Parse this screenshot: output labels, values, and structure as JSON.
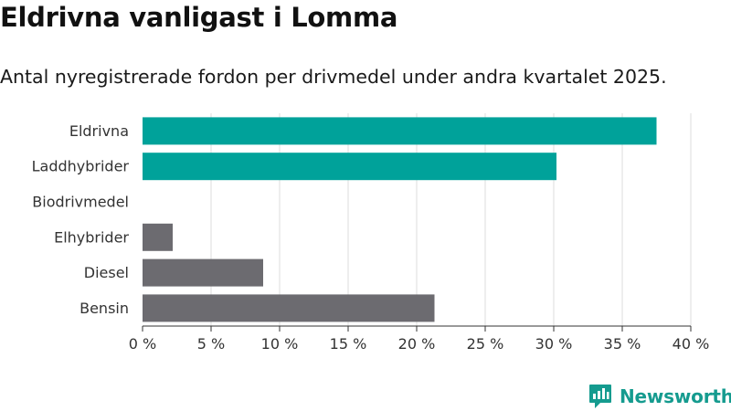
{
  "header": {
    "title": "Eldrivna vanligast i Lomma",
    "subtitle": "Antal nyregistrerade fordon per drivmedel under andra kvartalet 2025."
  },
  "brand": {
    "name": "Newsworthy",
    "icon": "newsworthy-logo-icon",
    "color": "#159b8f"
  },
  "colors": {
    "highlight": "#00a29a",
    "other": "#6c6b70",
    "grid": "#dddddd",
    "axis": "#333333"
  },
  "chart_data": {
    "type": "bar",
    "orientation": "horizontal",
    "categories": [
      "Eldrivna",
      "Laddhybrider",
      "Biodrivmedel",
      "Elhybrider",
      "Diesel",
      "Bensin"
    ],
    "values": [
      37.5,
      30.2,
      0,
      2.2,
      8.8,
      21.3
    ],
    "bar_colors": [
      "#00a29a",
      "#00a29a",
      "#6c6b70",
      "#6c6b70",
      "#6c6b70",
      "#6c6b70"
    ],
    "xlim": [
      0,
      40
    ],
    "xticks": [
      0,
      5,
      10,
      15,
      20,
      25,
      30,
      35,
      40
    ],
    "xtick_labels": [
      "0 %",
      "5 %",
      "10 %",
      "15 %",
      "20 %",
      "25 %",
      "30 %",
      "35 %",
      "40 %"
    ],
    "title": "Eldrivna vanligast i Lomma",
    "subtitle": "Antal nyregistrerade fordon per drivmedel under andra kvartalet 2025.",
    "xlabel": "",
    "ylabel": "",
    "grid": true,
    "legend": false
  }
}
